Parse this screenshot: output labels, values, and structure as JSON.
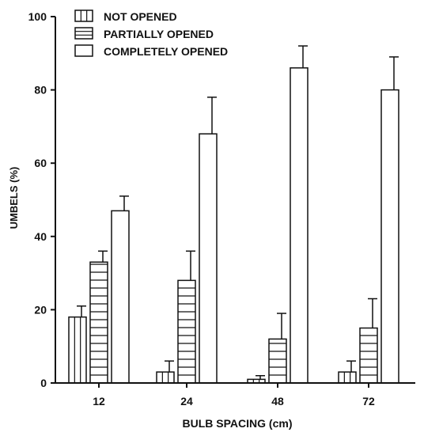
{
  "chart_data": {
    "type": "bar",
    "title": "",
    "xlabel": "BULB SPACING (cm)",
    "ylabel": "UMBELS (%)",
    "ylim": [
      0,
      100
    ],
    "yticks": [
      "0",
      "20",
      "40",
      "60",
      "80",
      "100"
    ],
    "categories": [
      "12",
      "24",
      "48",
      "72"
    ],
    "legend_position": "top-left",
    "series": [
      {
        "name": "NOT OPENED",
        "pattern": "vertical-lines",
        "values": [
          18,
          3,
          1,
          3
        ],
        "error": [
          3,
          3,
          1,
          3
        ]
      },
      {
        "name": "PARTIALLY OPENED",
        "pattern": "horizontal-lines",
        "values": [
          33,
          28,
          12,
          15
        ],
        "error": [
          3,
          8,
          7,
          8
        ]
      },
      {
        "name": "COMPLETELY OPENED",
        "pattern": "solid",
        "values": [
          47,
          68,
          86,
          80
        ],
        "error": [
          4,
          10,
          6,
          9
        ]
      }
    ],
    "colors": {
      "ink": "#111111",
      "fill": "#ffffff"
    }
  }
}
